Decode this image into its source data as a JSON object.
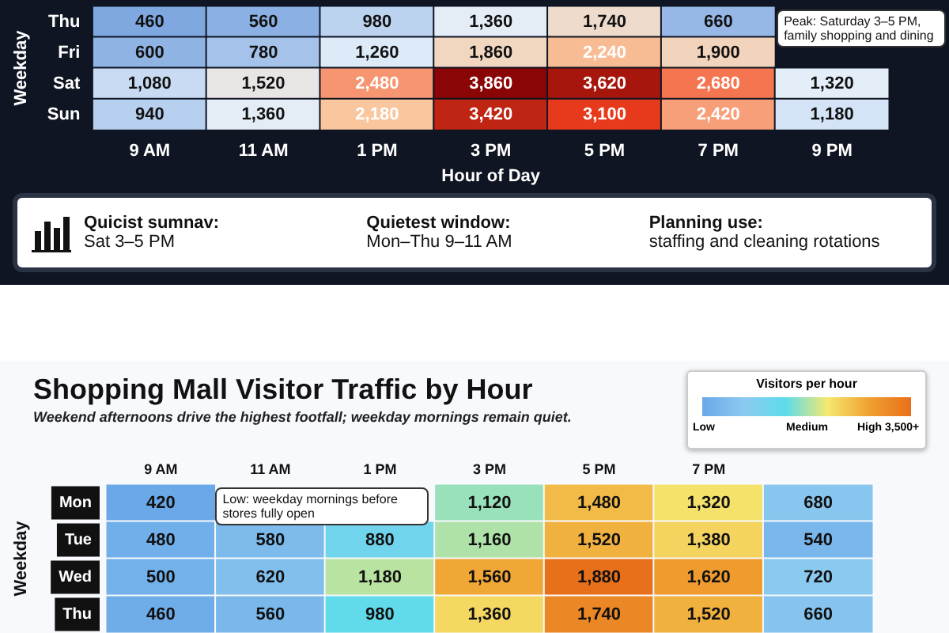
{
  "chart_data": [
    {
      "type": "heatmap",
      "xlabel": "Hour of Day",
      "ylabel": "Weekday",
      "categories": [
        "9 AM",
        "11 AM",
        "1 PM",
        "3 PM",
        "5 PM",
        "7 PM",
        "9 PM"
      ],
      "y_categories": [
        "Thu",
        "Fri",
        "Sat",
        "Sun"
      ],
      "cells": [
        [
          460,
          560,
          980,
          1360,
          1740,
          660,
          null
        ],
        [
          600,
          780,
          1260,
          1860,
          2240,
          1900,
          null
        ],
        [
          1080,
          1520,
          2480,
          3860,
          3620,
          2680,
          1320
        ],
        [
          940,
          1360,
          2180,
          3420,
          3100,
          2420,
          1180
        ]
      ],
      "cell_labels": [
        [
          "460",
          "560",
          "980",
          "1,360",
          "1,740",
          "660",
          null
        ],
        [
          "600",
          "780",
          "1,260",
          "1,860",
          "2,240",
          "1,900",
          null
        ],
        [
          "1,080",
          "1,520",
          "2,480",
          "3,860",
          "3,620",
          "2,680",
          "1,320"
        ],
        [
          "940",
          "1,360",
          "2,180",
          "3,420",
          "3,100",
          "2,420",
          "1,180"
        ]
      ],
      "data_labels": true,
      "annotations": [
        "Peak: Saturday 3–5 PM, family shopping and dining",
        "Quicist sumnav:",
        "Sat 3–5 PM",
        "Quietest window:",
        "Mon–Thu 9–11 AM",
        "Planning use:",
        "staffing and cleaning rotations"
      ]
    },
    {
      "type": "heatmap",
      "title": "Shopping Mall Visitor Traffic by Hour",
      "subtitle": "Weekend afternoons drive the highest footfall; weekday mornings remain quiet.",
      "ylabel": "Weekday",
      "clabel": "Visitors per hour",
      "categories": [
        "9 AM",
        "11 AM",
        "1 PM",
        "3 PM",
        "5 PM",
        "7 PM",
        null
      ],
      "y_categories": [
        "Mon",
        "Tue",
        "Wed",
        "Thu"
      ],
      "cells": [
        [
          420,
          null,
          null,
          1120,
          1480,
          1320,
          680
        ],
        [
          480,
          580,
          880,
          1160,
          1520,
          1380,
          540
        ],
        [
          500,
          620,
          1180,
          1560,
          1880,
          1620,
          720
        ],
        [
          460,
          560,
          980,
          1360,
          1740,
          1520,
          660
        ]
      ],
      "cell_labels": [
        [
          "420",
          null,
          null,
          "1,120",
          "1,480",
          "1,320",
          "680"
        ],
        [
          "480",
          "580",
          "880",
          "1,160",
          "1,520",
          "1,380",
          "540"
        ],
        [
          "500",
          "620",
          "1,180",
          "1,560",
          "1,880",
          "1,620",
          "720"
        ],
        [
          "460",
          "560",
          "980",
          "1,360",
          "1,740",
          "1,520",
          "660"
        ]
      ],
      "data_labels": true,
      "annotations": [
        "Low: weekday mornings before stores fully open",
        "Low",
        "Medium",
        "High 3,500+"
      ]
    }
  ]
}
